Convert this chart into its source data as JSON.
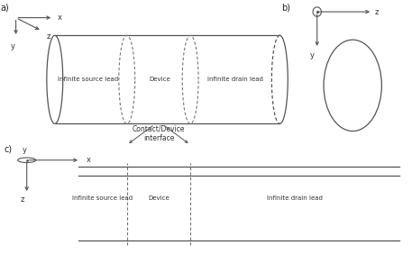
{
  "bg_color": "#ffffff",
  "line_color": "#555555",
  "dashed_color": "#666666",
  "text_color": "#222222",
  "label_a": "a)",
  "label_b": "b)",
  "label_c": "c)",
  "source_lead_text": "Infinite source lead",
  "device_text": "Device",
  "drain_lead_text": "Infinite drain lead",
  "contact_text": "Contact/Device\ninterface",
  "gray": "#555555",
  "dgray": "#777777"
}
